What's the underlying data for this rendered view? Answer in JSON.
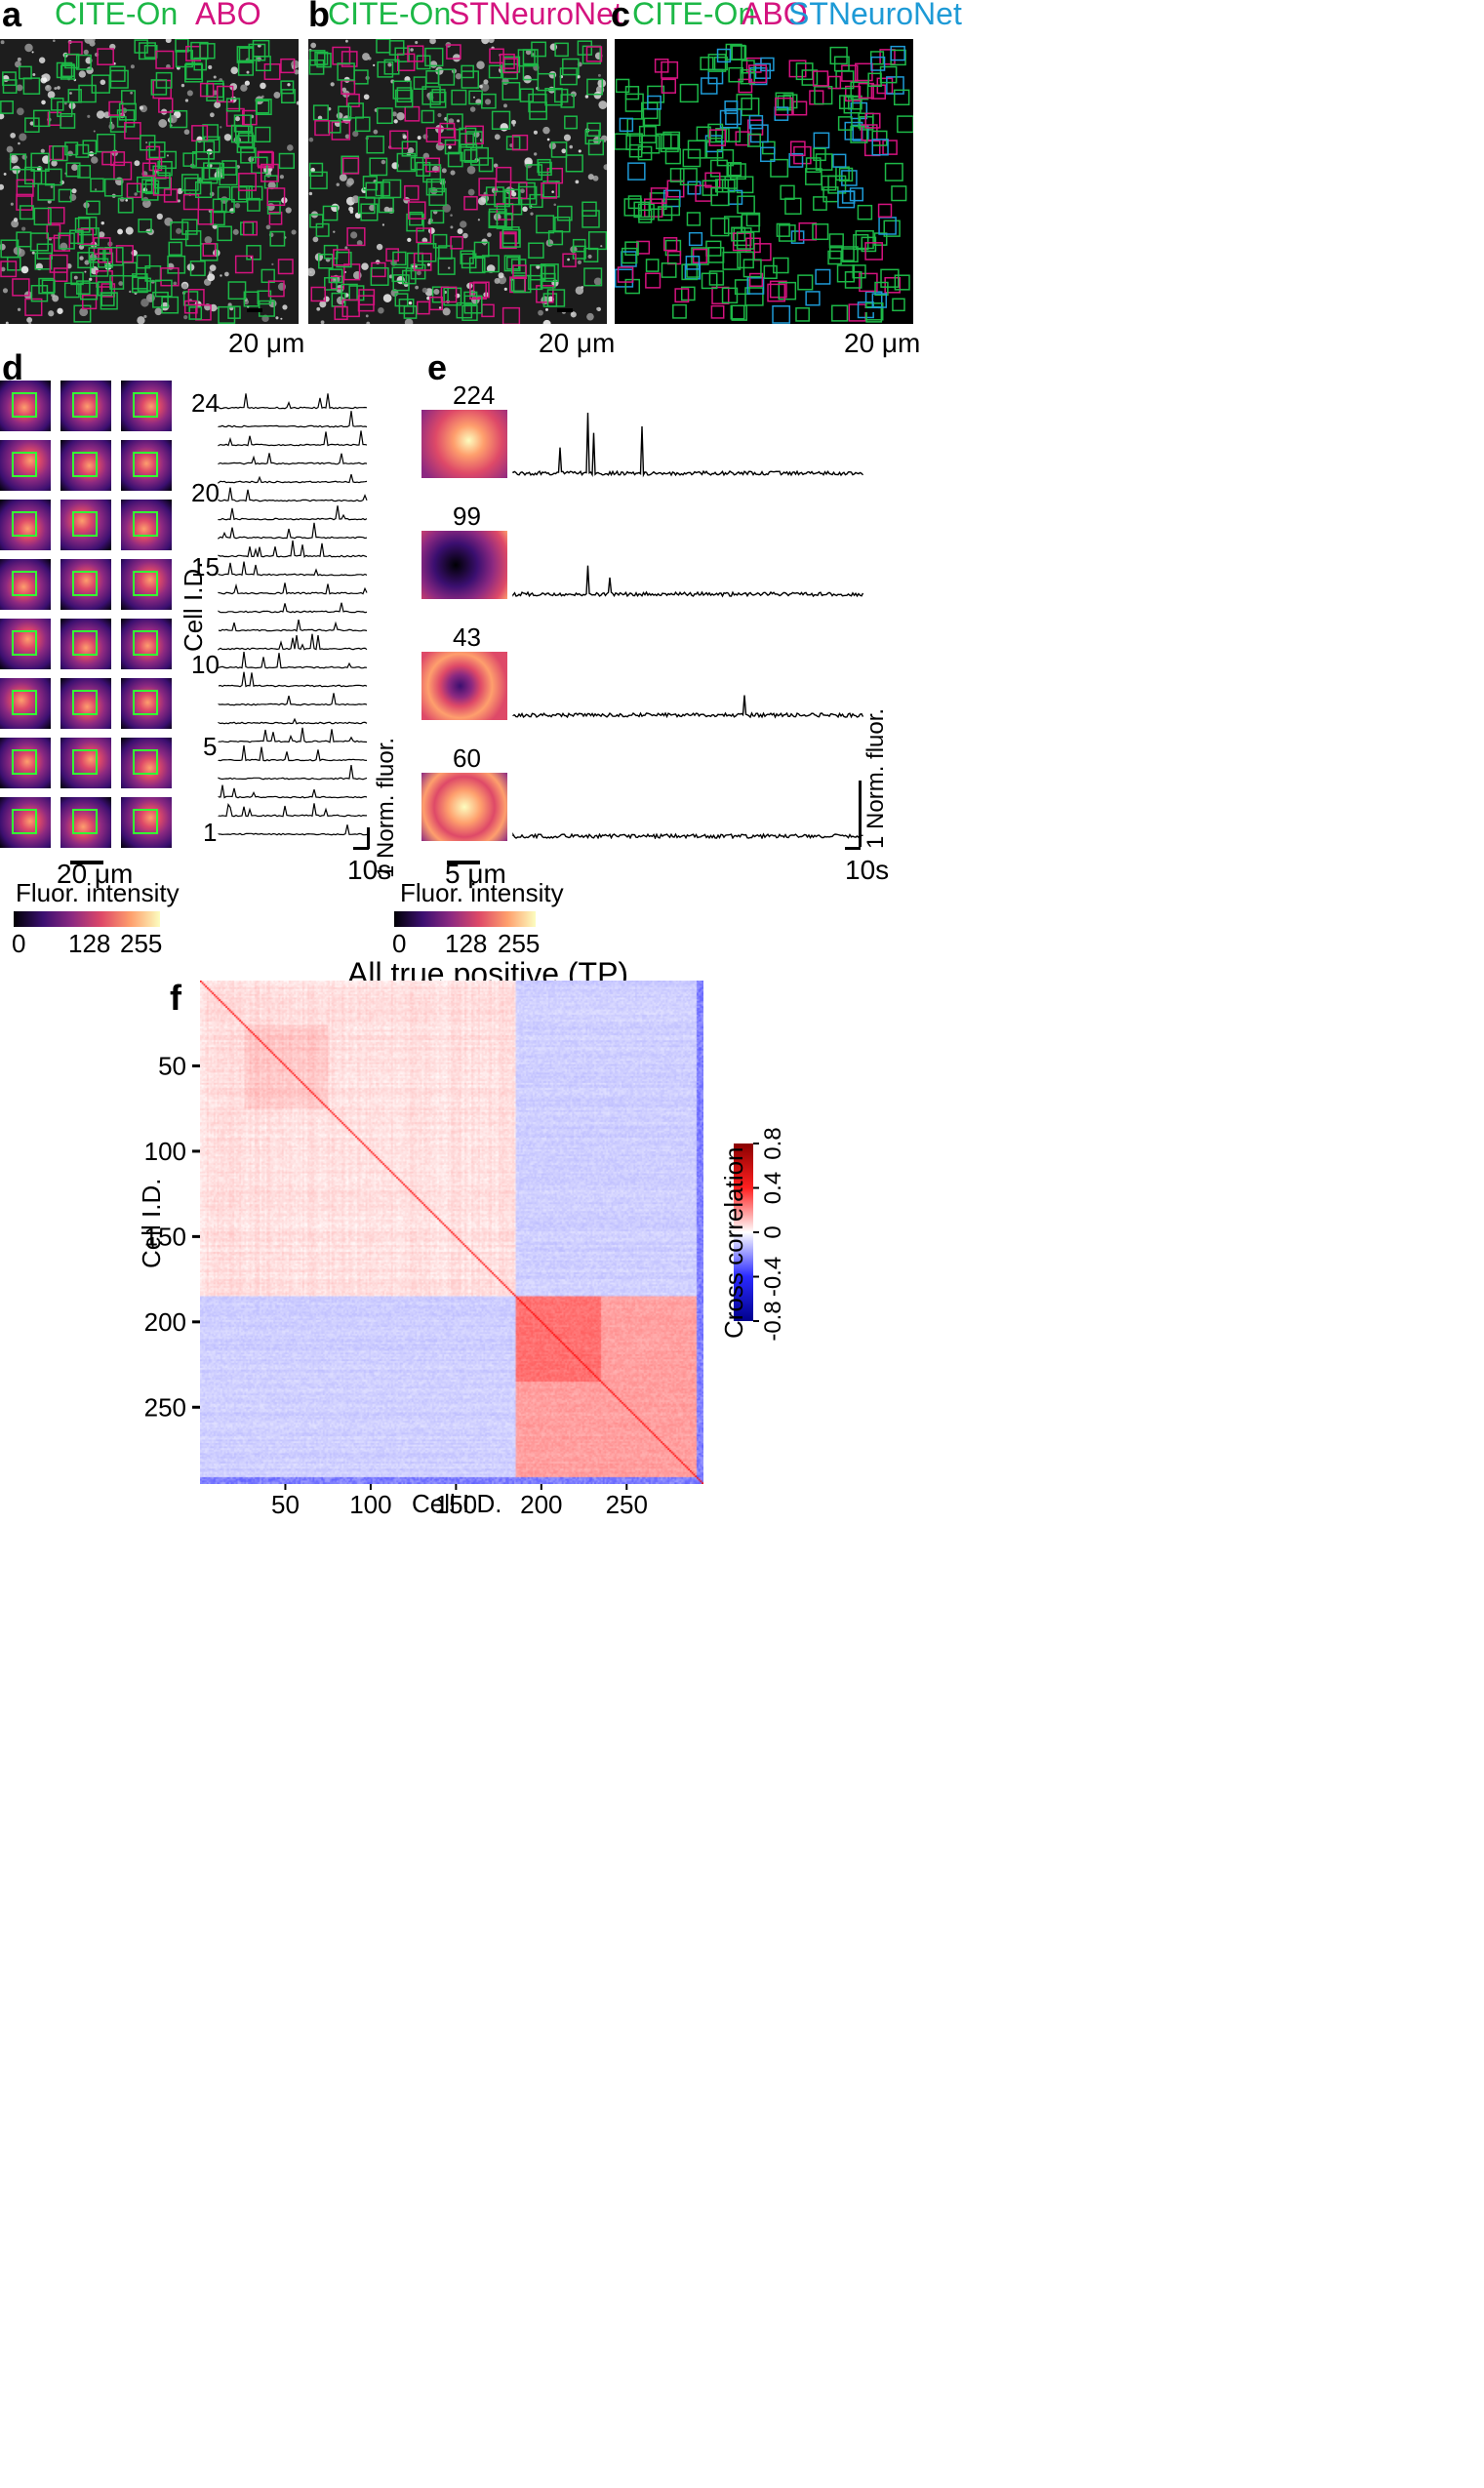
{
  "panel_labels": {
    "a": "a",
    "b": "b",
    "c": "c",
    "d": "d",
    "e": "e",
    "f": "f"
  },
  "panel_a": {
    "legend": [
      "CITE-On",
      "ABO"
    ],
    "scale": "20 μm"
  },
  "panel_b": {
    "legend": [
      "CITE-On",
      "STNeuroNet"
    ],
    "scale": "20 μm"
  },
  "panel_c": {
    "legend": [
      "CITE-On",
      "ABO",
      "STNeuroNet"
    ],
    "scale": "20 μm"
  },
  "colors": {
    "citeon": "#1db847",
    "abo": "#d4137f",
    "stneuronet": "#1e9ad6",
    "roi_green": "#33ff33"
  },
  "panel_d": {
    "scale": "20 μm",
    "cbar_title": "Fluor. intensity",
    "cbar_ticks": [
      "0",
      "128",
      "255"
    ],
    "ylabel": "Cell I.D.",
    "yticks": [
      "24",
      "20",
      "15",
      "10",
      "5",
      "1"
    ],
    "time_scale": "10s",
    "amp_scale": "1",
    "amp_label": "Norm. fluor."
  },
  "panel_e": {
    "cells": [
      "224",
      "99",
      "43",
      "60"
    ],
    "scale": "5 μm",
    "cbar_title": "Fluor. intensity",
    "cbar_ticks": [
      "0",
      "128",
      "255"
    ],
    "time_scale": "10s",
    "amp_scale": "1",
    "amp_label": "Norm. fluor."
  },
  "chart_data": {
    "type": "heatmap",
    "title": "All true positive (TP)",
    "xlabel": "Cell I.D.",
    "ylabel": "Cell I.D.",
    "xticks": [
      "50",
      "100",
      "150",
      "200",
      "250"
    ],
    "yticks": [
      "50",
      "100",
      "150",
      "200",
      "250"
    ],
    "n_cells": 295,
    "colorbar_label": "Cross correlation",
    "colorbar_ticks": [
      "0.8",
      "0.4",
      "0",
      "-0.4",
      "-0.8"
    ],
    "clim": [
      -0.8,
      0.8
    ],
    "blocks": [
      {
        "from": 1,
        "to": 185,
        "mean_corr_within": 0.15
      },
      {
        "from": 186,
        "to": 295,
        "mean_corr_within": 0.35
      },
      {
        "between_blocks": -0.15
      }
    ]
  }
}
